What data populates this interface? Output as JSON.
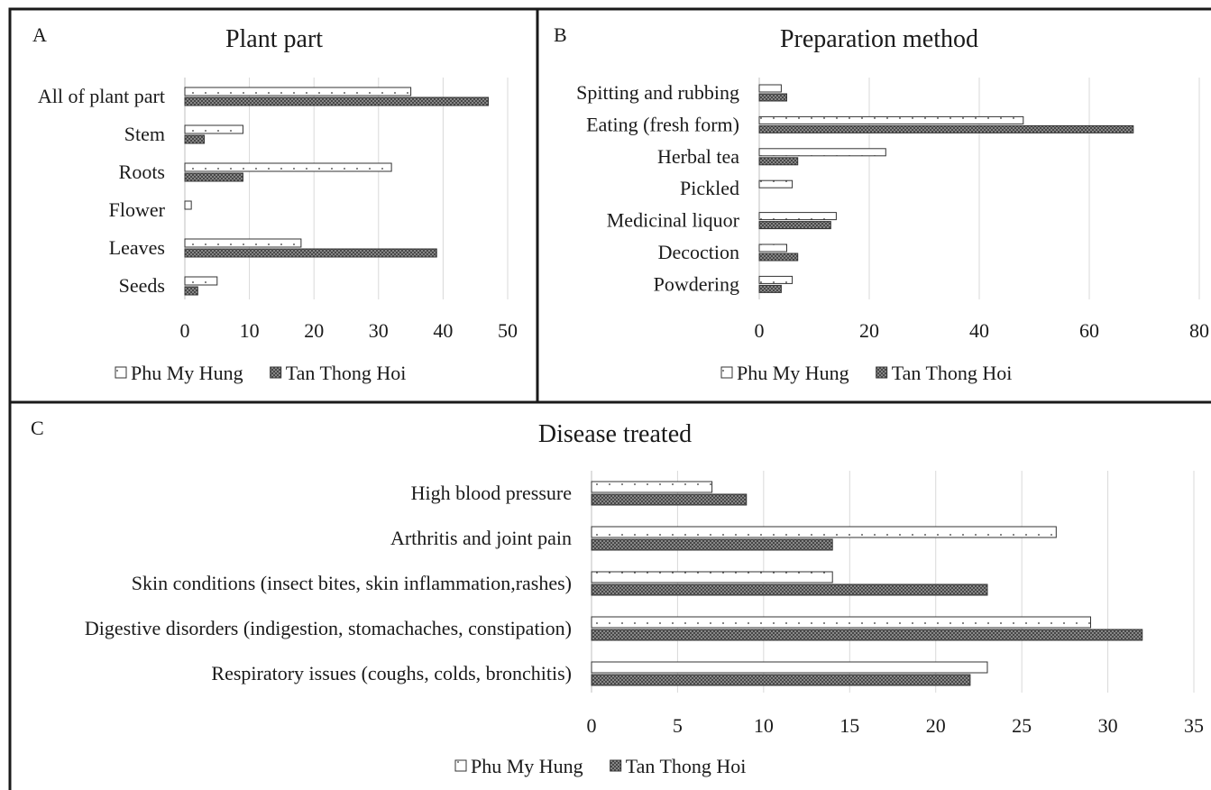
{
  "colors": {
    "border": "#1a1a1a",
    "grid": "#d9d9d9",
    "bar_outline": "#333333",
    "phu_my_hung_fill": "#ffffff",
    "tan_thong_hoi_fill": "#8c8c8c"
  },
  "chart_data": [
    {
      "panel": "A",
      "type": "bar",
      "orientation": "horizontal",
      "title": "Plant part",
      "categories": [
        "All of plant part",
        "Stem",
        "Roots",
        "Flower",
        "Leaves",
        "Seeds"
      ],
      "series": [
        {
          "name": "Phu My Hung",
          "values": [
            35,
            9,
            32,
            1,
            18,
            5
          ]
        },
        {
          "name": "Tan Thong Hoi",
          "values": [
            47,
            3,
            9,
            0,
            39,
            2
          ]
        }
      ],
      "xlim": [
        0,
        50
      ],
      "ticks": [
        0,
        10,
        20,
        30,
        40,
        50
      ],
      "grid": true,
      "legend": "bottom"
    },
    {
      "panel": "B",
      "type": "bar",
      "orientation": "horizontal",
      "title": "Preparation method",
      "categories": [
        "Spitting and rubbing",
        "Eating (fresh form)",
        "Herbal tea",
        "Pickled",
        "Medicinal liquor",
        "Decoction",
        "Powdering"
      ],
      "series": [
        {
          "name": "Phu My Hung",
          "values": [
            4,
            48,
            23,
            6,
            14,
            5,
            6
          ]
        },
        {
          "name": "Tan Thong Hoi",
          "values": [
            5,
            68,
            7,
            0,
            13,
            7,
            4
          ]
        }
      ],
      "xlim": [
        0,
        80
      ],
      "ticks": [
        0,
        20,
        40,
        60,
        80
      ],
      "grid": true,
      "legend": "bottom"
    },
    {
      "panel": "C",
      "type": "bar",
      "orientation": "horizontal",
      "title": "Disease treated",
      "categories": [
        "High blood pressure",
        "Arthritis and joint pain",
        "Skin conditions (insect bites, skin inflammation,rashes)",
        "Digestive disorders (indigestion, stomachaches, constipation)",
        "Respiratory issues (coughs, colds, bronchitis)"
      ],
      "series": [
        {
          "name": "Phu My Hung",
          "values": [
            7,
            27,
            14,
            29,
            23
          ]
        },
        {
          "name": "Tan Thong Hoi",
          "values": [
            9,
            14,
            23,
            32,
            22
          ]
        }
      ],
      "xlim": [
        0,
        35
      ],
      "ticks": [
        0,
        5,
        10,
        15,
        20,
        25,
        30,
        35
      ],
      "grid": true,
      "legend": "bottom"
    }
  ]
}
